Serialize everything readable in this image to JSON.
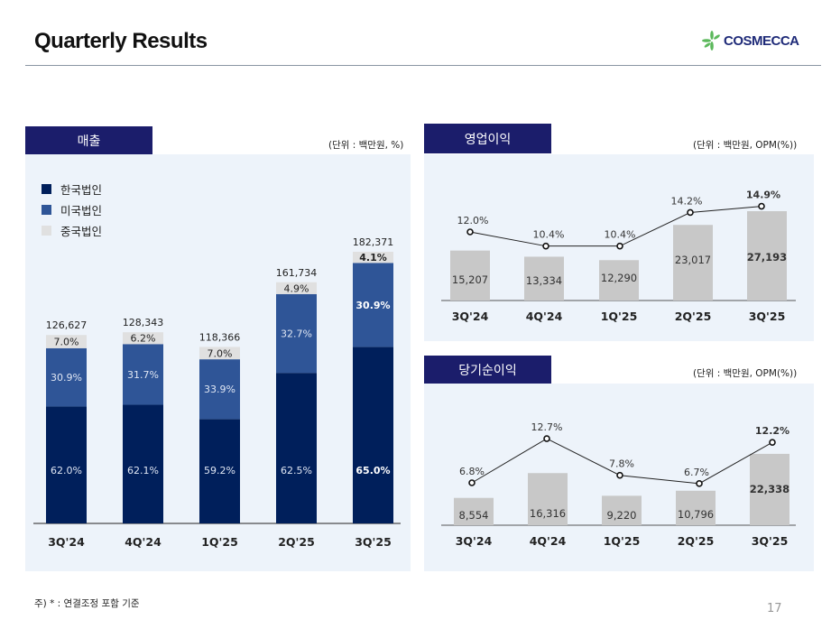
{
  "header": {
    "title": "Quarterly Results",
    "logo_text": "COSMECCA",
    "logo_icon": "leaf-star-icon"
  },
  "colors": {
    "korea": "#001f5b",
    "usa": "#2f5597",
    "china": "#e0e0e0",
    "gray_bar": "#c8c8c8",
    "panel_bg": "#edf3fa",
    "tag_bg": "#1b1d6b"
  },
  "revenue_panel": {
    "tag": "매출",
    "unit": "(단위 : 백만원, %)",
    "legend": [
      "한국법인",
      "미국법인",
      "중국법인"
    ]
  },
  "op_panel": {
    "tag": "영업이익",
    "unit": "(단위 : 백만원, OPM(%))"
  },
  "ni_panel": {
    "tag": "당기순이익",
    "unit": "(단위 : 백만원, OPM(%))"
  },
  "footer": {
    "note": "주) * : 연결조정 포함 기준",
    "page": "17"
  },
  "chart_data": [
    {
      "type": "bar",
      "stacked": true,
      "title": "매출",
      "categories": [
        "3Q'24",
        "4Q'24",
        "1Q'25",
        "2Q'25",
        "3Q'25"
      ],
      "totals": [
        126627,
        128343,
        118366,
        161734,
        182371
      ],
      "total_labels": [
        "126,627",
        "128,343",
        "118,366",
        "161,734",
        "182,371"
      ],
      "series": [
        {
          "name": "한국법인",
          "values": [
            62.0,
            62.1,
            59.2,
            62.5,
            65.0
          ],
          "labels": [
            "62.0%",
            "62.1%",
            "59.2%",
            "62.5%",
            "65.0%"
          ]
        },
        {
          "name": "미국법인",
          "values": [
            30.9,
            31.7,
            33.9,
            32.7,
            30.9
          ],
          "labels": [
            "30.9%",
            "31.7%",
            "33.9%",
            "32.7%",
            "30.9%"
          ]
        },
        {
          "name": "중국법인",
          "values": [
            7.0,
            6.2,
            7.0,
            4.9,
            4.1
          ],
          "labels": [
            "7.0%",
            "6.2%",
            "7.0%",
            "4.9%",
            "4.1%"
          ]
        }
      ],
      "ylim": [
        0,
        182371
      ],
      "legend_position": "top-left",
      "highlight_last": true
    },
    {
      "type": "bar",
      "title": "영업이익",
      "categories": [
        "3Q'24",
        "4Q'24",
        "1Q'25",
        "2Q'25",
        "3Q'25"
      ],
      "values": [
        15207,
        13334,
        12290,
        23017,
        27193
      ],
      "value_labels": [
        "15,207",
        "13,334",
        "12,290",
        "23,017",
        "27,193"
      ],
      "line": {
        "name": "OPM",
        "values": [
          12.0,
          10.4,
          10.4,
          14.2,
          14.9
        ],
        "labels": [
          "12.0%",
          "10.4%",
          "10.4%",
          "14.2%",
          "14.9%"
        ]
      },
      "highlight_last": true
    },
    {
      "type": "bar",
      "title": "당기순이익",
      "categories": [
        "3Q'24",
        "4Q'24",
        "1Q'25",
        "2Q'25",
        "3Q'25"
      ],
      "values": [
        8554,
        16316,
        9220,
        10796,
        22338
      ],
      "value_labels": [
        "8,554",
        "16,316",
        "9,220",
        "10,796",
        "22,338"
      ],
      "line": {
        "name": "OPM",
        "values": [
          6.8,
          12.7,
          7.8,
          6.7,
          12.2
        ],
        "labels": [
          "6.8%",
          "12.7%",
          "7.8%",
          "6.7%",
          "12.2%"
        ]
      },
      "highlight_last": true
    }
  ]
}
